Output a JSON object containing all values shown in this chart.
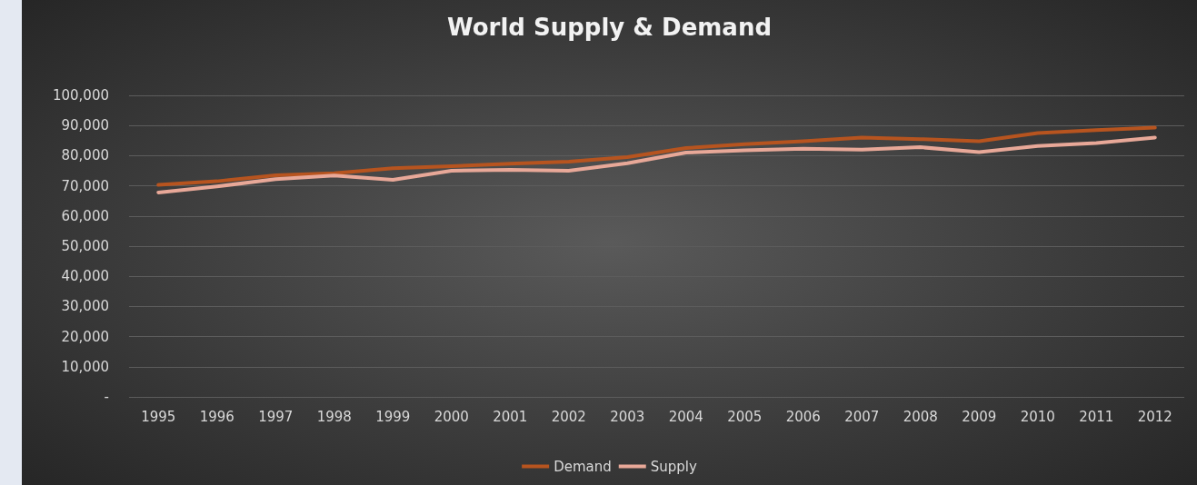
{
  "chart_data": {
    "type": "line",
    "title": "World Supply & Demand",
    "categories": [
      "1995",
      "1996",
      "1997",
      "1998",
      "1999",
      "2000",
      "2001",
      "2002",
      "2003",
      "2004",
      "2005",
      "2006",
      "2007",
      "2008",
      "2009",
      "2010",
      "2011",
      "2012"
    ],
    "series": [
      {
        "name": "Demand",
        "color": "#b7541f",
        "values": [
          70300,
          71500,
          73500,
          74200,
          75800,
          76500,
          77300,
          78000,
          79500,
          82500,
          83800,
          84800,
          86000,
          85500,
          84800,
          87500,
          88500,
          89300
        ]
      },
      {
        "name": "Supply",
        "color": "#e8a898",
        "values": [
          67800,
          69800,
          72200,
          73400,
          72000,
          75000,
          75300,
          75000,
          77500,
          81000,
          81800,
          82300,
          82000,
          82800,
          81200,
          83200,
          84200,
          86000
        ]
      }
    ],
    "ylim": [
      0,
      100000
    ],
    "yticks": [
      {
        "value": 0,
        "label": "-"
      },
      {
        "value": 10000,
        "label": "10,000"
      },
      {
        "value": 20000,
        "label": "20,000"
      },
      {
        "value": 30000,
        "label": "30,000"
      },
      {
        "value": 40000,
        "label": "40,000"
      },
      {
        "value": 50000,
        "label": "50,000"
      },
      {
        "value": 60000,
        "label": "60,000"
      },
      {
        "value": 70000,
        "label": "70,000"
      },
      {
        "value": 80000,
        "label": "80,000"
      },
      {
        "value": 90000,
        "label": "90,000"
      },
      {
        "value": 100000,
        "label": "100,000"
      }
    ],
    "grid": "y",
    "legend": "bottom",
    "marker": "none",
    "line_style": "solid"
  }
}
